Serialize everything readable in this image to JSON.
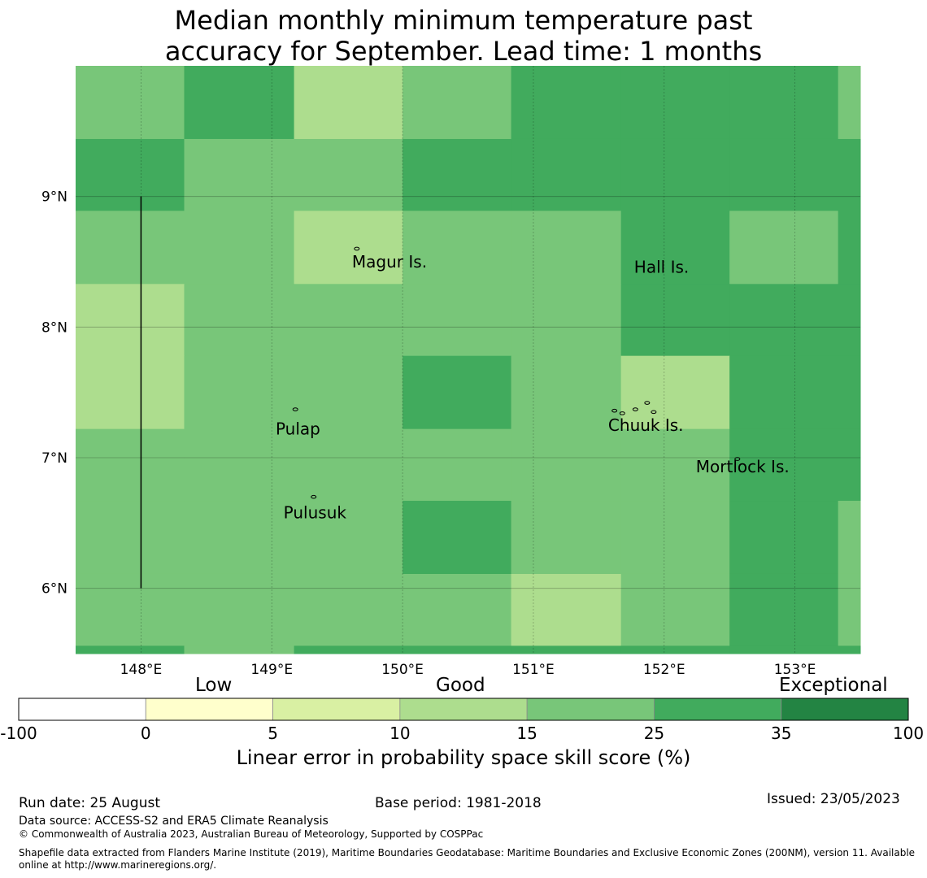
{
  "title": {
    "line1": "Median monthly minimum temperature past",
    "line2": "accuracy for September. Lead time: 1 months"
  },
  "map": {
    "lon_range": [
      147.5,
      153.5
    ],
    "lat_range": [
      5.5,
      10.0
    ],
    "lon_ticks": [
      {
        "value": 148,
        "label": "148°E"
      },
      {
        "value": 149,
        "label": "149°E"
      },
      {
        "value": 150,
        "label": "150°E"
      },
      {
        "value": 151,
        "label": "151°E"
      },
      {
        "value": 152,
        "label": "152°E"
      },
      {
        "value": 153,
        "label": "153°E"
      }
    ],
    "lat_ticks": [
      {
        "value": 9,
        "label": "9°N"
      },
      {
        "value": 8,
        "label": "8°N"
      },
      {
        "value": 7,
        "label": "7°N"
      },
      {
        "value": 6,
        "label": "6°N"
      }
    ],
    "grid_lon_edges": [
      147.5,
      148.33,
      149.17,
      150.0,
      150.83,
      151.67,
      152.5,
      153.33,
      153.5
    ],
    "grid_lat_edges": [
      10.0,
      9.44,
      8.89,
      8.33,
      7.78,
      7.22,
      6.67,
      6.11,
      5.56,
      5.5
    ],
    "grid_classes": [
      [
        4,
        5,
        3,
        4,
        5,
        5,
        5,
        4
      ],
      [
        5,
        4,
        4,
        5,
        5,
        5,
        5,
        5
      ],
      [
        4,
        4,
        3,
        4,
        4,
        5,
        4,
        5
      ],
      [
        3,
        4,
        4,
        4,
        4,
        5,
        5,
        5
      ],
      [
        3,
        4,
        4,
        5,
        4,
        3,
        5,
        5
      ],
      [
        4,
        4,
        4,
        4,
        4,
        4,
        5,
        5
      ],
      [
        4,
        4,
        4,
        5,
        4,
        4,
        5,
        4
      ],
      [
        4,
        4,
        4,
        4,
        3,
        4,
        5,
        4
      ],
      [
        5,
        4,
        5,
        5,
        5,
        5,
        5,
        5
      ]
    ],
    "boundary_line": {
      "lon": 148.0,
      "lat_from": 9.0,
      "lat_to": 6.0
    },
    "place_labels": [
      {
        "name": "Magur Is.",
        "lon": 149.9,
        "lat": 8.5
      },
      {
        "name": "Hall Is.",
        "lon": 151.98,
        "lat": 8.46
      },
      {
        "name": "Pulap",
        "lon": 149.2,
        "lat": 7.22
      },
      {
        "name": "Chuuk Is.",
        "lon": 151.86,
        "lat": 7.25
      },
      {
        "name": "Mortlock Is.",
        "lon": 152.6,
        "lat": 6.93
      },
      {
        "name": "Pulusuk",
        "lon": 149.33,
        "lat": 6.58
      }
    ],
    "islands": [
      {
        "lon": 149.65,
        "lat": 8.6
      },
      {
        "lon": 149.18,
        "lat": 7.37
      },
      {
        "lon": 149.32,
        "lat": 6.7
      },
      {
        "lon": 151.62,
        "lat": 7.36
      },
      {
        "lon": 151.68,
        "lat": 7.34
      },
      {
        "lon": 151.78,
        "lat": 7.37
      },
      {
        "lon": 151.92,
        "lat": 7.35
      },
      {
        "lon": 151.87,
        "lat": 7.42
      },
      {
        "lon": 152.56,
        "lat": 6.99
      }
    ]
  },
  "colorbar": {
    "categories": [
      "Low",
      "Good",
      "Exceptional"
    ],
    "bins": [
      {
        "from": "-100",
        "to": "0",
        "color": "#ffffff"
      },
      {
        "from": "0",
        "to": "5",
        "color": "#ffffcc"
      },
      {
        "from": "5",
        "to": "10",
        "color": "#d9f0a3"
      },
      {
        "from": "10",
        "to": "15",
        "color": "#addd8e"
      },
      {
        "from": "15",
        "to": "25",
        "color": "#78c679"
      },
      {
        "from": "25",
        "to": "35",
        "color": "#41ab5d"
      },
      {
        "from": "35",
        "to": "100",
        "color": "#238443"
      }
    ],
    "tick_labels": [
      "-100",
      "0",
      "5",
      "10",
      "15",
      "25",
      "35",
      "100"
    ],
    "label": "Linear error in probability space skill score (%)"
  },
  "footer": {
    "run_date": "Run date: 25 August",
    "base_period": "Base period: 1981-2018",
    "issued": "Issued: 23/05/2023",
    "data_source": "Data source: ACCESS-S2 and ERA5 Climate Reanalysis",
    "copyright": "© Commonwealth of Australia 2023, Australian Bureau of Meteorology, Supported by COSPPac",
    "shapefile": "Shapefile data extracted from Flanders Marine Institute (2019), Maritime Boundaries Geodatabase: Maritime Boundaries and Exclusive Economic Zones (200NM), version 11. Available online at http://www.marineregions.org/."
  }
}
